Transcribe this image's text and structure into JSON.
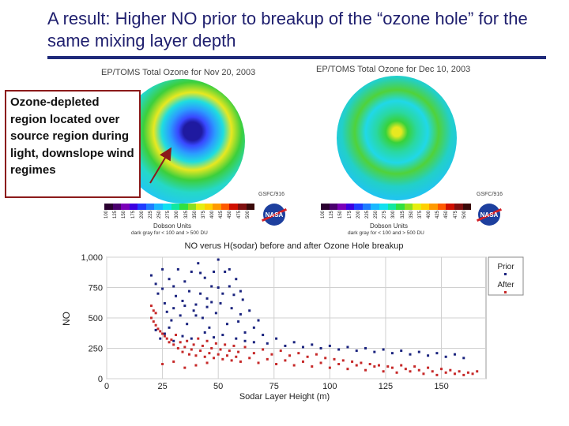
{
  "slide": {
    "title": "A result: Higher NO prior to breakup of the “ozone hole” for the same mixing layer depth"
  },
  "maps": [
    {
      "title": "EP/TOMS Total Ozone for Nov 20, 2003",
      "credit": "GSFC/916"
    },
    {
      "title": "EP/TOMS Total Ozone for Dec 10, 2003",
      "credit": "GSFC/916"
    }
  ],
  "colorbar": {
    "ticks": [
      "100",
      "125",
      "150",
      "175",
      "200",
      "225",
      "250",
      "275",
      "300",
      "325",
      "350",
      "375",
      "400",
      "425",
      "450",
      "475",
      "500"
    ],
    "colors": [
      "#2a0030",
      "#4a006e",
      "#7a00b8",
      "#3b00e0",
      "#1f3cff",
      "#1e7cff",
      "#19b8ff",
      "#10e0f0",
      "#10e8a0",
      "#30e040",
      "#8ae020",
      "#e6ee10",
      "#ffd000",
      "#ff9a00",
      "#ff5a00",
      "#d01000",
      "#801010",
      "#3a0a0a"
    ],
    "units_label": "Dobson Units",
    "note": "dark gray for < 100 and > 500 DU"
  },
  "logo_text": "NASA",
  "callout": {
    "text": "Ozone-depleted region located over source region during light, downslope wind regimes"
  },
  "chart_data": {
    "type": "scatter",
    "title": "NO verus H(sodar) before and after Ozone Hole breakup",
    "xlabel": "Sodar Layer Height (m)",
    "ylabel": "NO",
    "xlim": [
      0,
      170
    ],
    "ylim": [
      0,
      1000
    ],
    "xticks": [
      0,
      25,
      50,
      75,
      100,
      125,
      150
    ],
    "xtick_labels": [
      "0",
      "25",
      "50",
      "75",
      "100",
      "125",
      "150"
    ],
    "yticks": [
      0,
      250,
      500,
      750,
      1000
    ],
    "ytick_labels": [
      "0",
      "250",
      "500",
      "750",
      "1,000"
    ],
    "grid": true,
    "legend_position": "right",
    "series": [
      {
        "name": "Prior",
        "color": "#1a237e",
        "points": [
          [
            20,
            850
          ],
          [
            22,
            780
          ],
          [
            23,
            700
          ],
          [
            25,
            900
          ],
          [
            26,
            620
          ],
          [
            27,
            550
          ],
          [
            28,
            820
          ],
          [
            29,
            480
          ],
          [
            30,
            760
          ],
          [
            31,
            680
          ],
          [
            32,
            900
          ],
          [
            33,
            520
          ],
          [
            34,
            640
          ],
          [
            35,
            800
          ],
          [
            36,
            450
          ],
          [
            37,
            720
          ],
          [
            38,
            880
          ],
          [
            39,
            560
          ],
          [
            40,
            610
          ],
          [
            41,
            950
          ],
          [
            42,
            700
          ],
          [
            43,
            500
          ],
          [
            44,
            830
          ],
          [
            45,
            660
          ],
          [
            46,
            420
          ],
          [
            47,
            760
          ],
          [
            48,
            880
          ],
          [
            49,
            540
          ],
          [
            50,
            980
          ],
          [
            51,
            620
          ],
          [
            52,
            700
          ],
          [
            53,
            880
          ],
          [
            54,
            450
          ],
          [
            55,
            760
          ],
          [
            56,
            580
          ],
          [
            57,
            690
          ],
          [
            58,
            820
          ],
          [
            59,
            470
          ],
          [
            60,
            530
          ],
          [
            61,
            650
          ],
          [
            62,
            380
          ],
          [
            64,
            560
          ],
          [
            66,
            420
          ],
          [
            68,
            480
          ],
          [
            70,
            360
          ],
          [
            22,
            400
          ],
          [
            24,
            330
          ],
          [
            26,
            370
          ],
          [
            28,
            420
          ],
          [
            30,
            310
          ],
          [
            34,
            350
          ],
          [
            38,
            330
          ],
          [
            44,
            380
          ],
          [
            48,
            340
          ],
          [
            52,
            360
          ],
          [
            58,
            330
          ],
          [
            62,
            310
          ],
          [
            66,
            300
          ],
          [
            72,
            290
          ],
          [
            76,
            330
          ],
          [
            80,
            270
          ],
          [
            84,
            300
          ],
          [
            88,
            260
          ],
          [
            92,
            280
          ],
          [
            96,
            250
          ],
          [
            100,
            270
          ],
          [
            104,
            240
          ],
          [
            108,
            260
          ],
          [
            112,
            230
          ],
          [
            116,
            250
          ],
          [
            120,
            220
          ],
          [
            124,
            240
          ],
          [
            128,
            210
          ],
          [
            132,
            230
          ],
          [
            136,
            200
          ],
          [
            140,
            220
          ],
          [
            144,
            190
          ],
          [
            148,
            210
          ],
          [
            152,
            180
          ],
          [
            156,
            200
          ],
          [
            160,
            170
          ],
          [
            35,
            600
          ],
          [
            40,
            520
          ],
          [
            45,
            590
          ],
          [
            50,
            750
          ],
          [
            55,
            900
          ],
          [
            60,
            720
          ],
          [
            25,
            740
          ],
          [
            30,
            580
          ],
          [
            42,
            870
          ],
          [
            47,
            630
          ]
        ]
      },
      {
        "name": "After",
        "color": "#c62828",
        "points": [
          [
            20,
            600
          ],
          [
            21,
            560
          ],
          [
            22,
            540
          ],
          [
            20,
            500
          ],
          [
            21,
            470
          ],
          [
            22,
            440
          ],
          [
            23,
            410
          ],
          [
            24,
            390
          ],
          [
            25,
            370
          ],
          [
            26,
            350
          ],
          [
            27,
            330
          ],
          [
            28,
            300
          ],
          [
            29,
            320
          ],
          [
            30,
            280
          ],
          [
            31,
            360
          ],
          [
            32,
            250
          ],
          [
            33,
            300
          ],
          [
            34,
            220
          ],
          [
            35,
            260
          ],
          [
            36,
            310
          ],
          [
            37,
            200
          ],
          [
            38,
            240
          ],
          [
            39,
            280
          ],
          [
            40,
            190
          ],
          [
            41,
            330
          ],
          [
            42,
            230
          ],
          [
            43,
            270
          ],
          [
            44,
            180
          ],
          [
            45,
            310
          ],
          [
            46,
            210
          ],
          [
            47,
            250
          ],
          [
            48,
            170
          ],
          [
            49,
            290
          ],
          [
            50,
            200
          ],
          [
            51,
            240
          ],
          [
            52,
            160
          ],
          [
            53,
            280
          ],
          [
            54,
            190
          ],
          [
            55,
            230
          ],
          [
            56,
            150
          ],
          [
            57,
            270
          ],
          [
            58,
            180
          ],
          [
            59,
            220
          ],
          [
            60,
            140
          ],
          [
            62,
            260
          ],
          [
            64,
            170
          ],
          [
            66,
            210
          ],
          [
            68,
            130
          ],
          [
            70,
            240
          ],
          [
            72,
            160
          ],
          [
            74,
            200
          ],
          [
            76,
            120
          ],
          [
            78,
            230
          ],
          [
            80,
            150
          ],
          [
            82,
            190
          ],
          [
            84,
            110
          ],
          [
            86,
            210
          ],
          [
            88,
            140
          ],
          [
            90,
            180
          ],
          [
            92,
            100
          ],
          [
            94,
            200
          ],
          [
            96,
            130
          ],
          [
            98,
            170
          ],
          [
            100,
            90
          ],
          [
            102,
            160
          ],
          [
            104,
            120
          ],
          [
            106,
            150
          ],
          [
            108,
            80
          ],
          [
            110,
            140
          ],
          [
            112,
            110
          ],
          [
            114,
            130
          ],
          [
            116,
            70
          ],
          [
            118,
            120
          ],
          [
            120,
            100
          ],
          [
            122,
            110
          ],
          [
            124,
            60
          ],
          [
            126,
            100
          ],
          [
            128,
            90
          ],
          [
            130,
            50
          ],
          [
            132,
            110
          ],
          [
            134,
            80
          ],
          [
            136,
            60
          ],
          [
            138,
            100
          ],
          [
            140,
            70
          ],
          [
            142,
            40
          ],
          [
            144,
            90
          ],
          [
            146,
            60
          ],
          [
            148,
            30
          ],
          [
            150,
            80
          ],
          [
            152,
            50
          ],
          [
            154,
            70
          ],
          [
            156,
            40
          ],
          [
            158,
            60
          ],
          [
            160,
            30
          ],
          [
            162,
            50
          ],
          [
            164,
            40
          ],
          [
            166,
            60
          ],
          [
            25,
            120
          ],
          [
            30,
            140
          ],
          [
            35,
            90
          ],
          [
            40,
            110
          ],
          [
            45,
            130
          ]
        ]
      }
    ]
  }
}
